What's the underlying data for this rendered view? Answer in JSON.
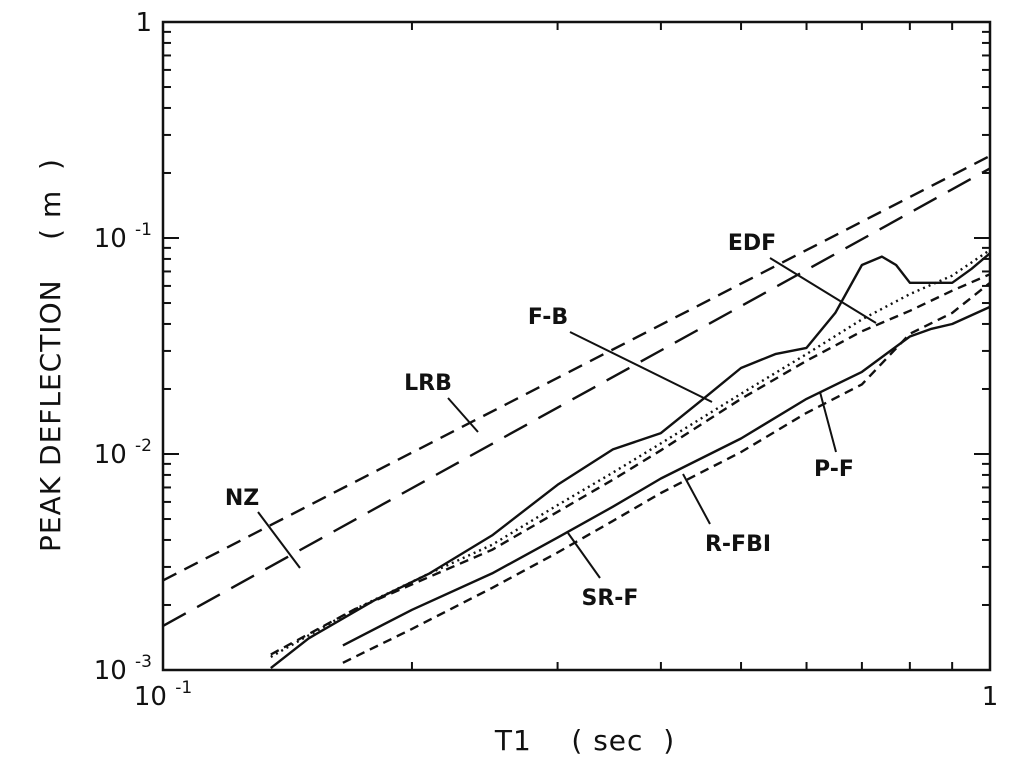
{
  "chart_data": {
    "type": "line",
    "title": "",
    "xlabel": "T1    ( sec  )",
    "ylabel": "PEAK DEFLECTION    ( m  )",
    "xscale": "log",
    "yscale": "log",
    "xlim": [
      0.1,
      1
    ],
    "ylim": [
      0.001,
      1
    ],
    "grid": false,
    "legend": "none (series labelled directly on the plot)",
    "x_ticks": [
      {
        "value": 0.1,
        "base": "10",
        "exp": "-1"
      },
      {
        "value": 1,
        "base": "1",
        "exp": ""
      }
    ],
    "y_ticks": [
      {
        "value": 0.001,
        "base": "10",
        "exp": "-3"
      },
      {
        "value": 0.01,
        "base": "10",
        "exp": "-2"
      },
      {
        "value": 0.1,
        "base": "10",
        "exp": "-1"
      },
      {
        "value": 1,
        "base": "1",
        "exp": ""
      }
    ],
    "series": [
      {
        "name": "NZ",
        "dash": "medium",
        "x": [
          0.1,
          1.0
        ],
        "y": [
          0.0026,
          0.24
        ]
      },
      {
        "name": "LRB",
        "dash": "long",
        "x": [
          0.1,
          1.0
        ],
        "y": [
          0.0016,
          0.21
        ]
      },
      {
        "name": "F-B",
        "dash": "solid",
        "x": [
          0.135,
          0.15,
          0.18,
          0.21,
          0.25,
          0.3,
          0.35,
          0.4,
          0.45,
          0.5,
          0.55,
          0.6,
          0.65,
          0.7,
          0.74,
          0.77,
          0.8,
          0.85,
          0.9,
          0.95,
          1.0
        ],
        "y": [
          0.00102,
          0.0014,
          0.0021,
          0.0028,
          0.0042,
          0.0072,
          0.0105,
          0.0125,
          0.018,
          0.025,
          0.029,
          0.031,
          0.045,
          0.075,
          0.082,
          0.075,
          0.062,
          0.062,
          0.062,
          0.072,
          0.085
        ]
      },
      {
        "name": "EDF",
        "dash": "dotted",
        "x": [
          0.135,
          0.17,
          0.21,
          0.25,
          0.3,
          0.35,
          0.4,
          0.5,
          0.6,
          0.7,
          0.8,
          0.9,
          1.0
        ],
        "y": [
          0.00115,
          0.0019,
          0.0028,
          0.0038,
          0.0058,
          0.0082,
          0.0112,
          0.019,
          0.029,
          0.042,
          0.055,
          0.067,
          0.088
        ]
      },
      {
        "name": "P-F",
        "dash": "short",
        "x": [
          0.135,
          0.17,
          0.21,
          0.25,
          0.3,
          0.35,
          0.4,
          0.5,
          0.6,
          0.7,
          0.8,
          0.9,
          1.0
        ],
        "y": [
          0.00118,
          0.0019,
          0.0027,
          0.0036,
          0.0054,
          0.0076,
          0.0104,
          0.018,
          0.027,
          0.037,
          0.046,
          0.057,
          0.068
        ]
      },
      {
        "name": "R-FBI",
        "dash": "solid",
        "x": [
          0.165,
          0.2,
          0.25,
          0.3,
          0.35,
          0.4,
          0.5,
          0.6,
          0.7,
          0.8,
          0.85,
          0.9,
          1.0
        ],
        "y": [
          0.0013,
          0.0019,
          0.0028,
          0.0041,
          0.0057,
          0.0077,
          0.0118,
          0.018,
          0.024,
          0.035,
          0.038,
          0.04,
          0.048
        ]
      },
      {
        "name": "SR-F",
        "dash": "short",
        "x": [
          0.165,
          0.2,
          0.25,
          0.3,
          0.35,
          0.4,
          0.5,
          0.6,
          0.7,
          0.8,
          0.9,
          1.0
        ],
        "y": [
          0.00108,
          0.00155,
          0.0024,
          0.0035,
          0.0049,
          0.0066,
          0.0102,
          0.0155,
          0.021,
          0.036,
          0.045,
          0.062
        ]
      }
    ]
  }
}
